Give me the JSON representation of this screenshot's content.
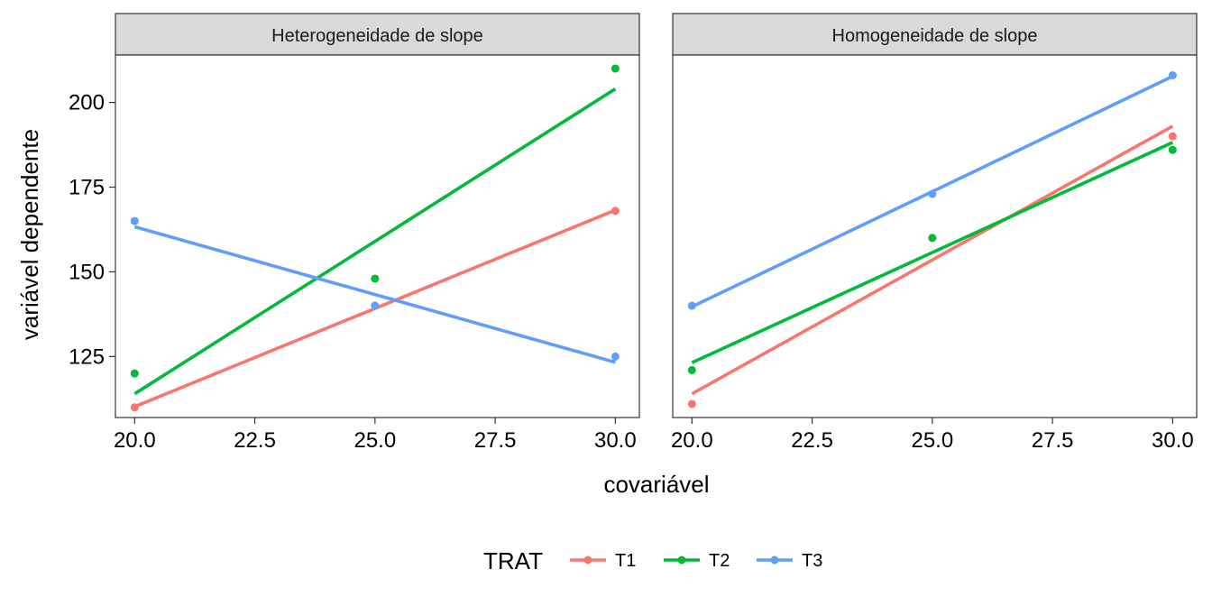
{
  "chart_data": {
    "type": "scatter",
    "ylabel": "variável dependente",
    "xlabel": "covariável",
    "xlim": [
      19.6,
      30.5
    ],
    "ylim": [
      107,
      214
    ],
    "x_ticks": [
      "20.0",
      "22.5",
      "25.0",
      "27.5",
      "30.0"
    ],
    "x_tick_values": [
      20,
      22.5,
      25,
      27.5,
      30
    ],
    "y_ticks": [
      "125",
      "150",
      "175",
      "200"
    ],
    "y_tick_values": [
      125,
      150,
      175,
      200
    ],
    "grid": false,
    "legend": {
      "title": "TRAT",
      "position": "bottom",
      "entries": [
        "T1",
        "T2",
        "T3"
      ]
    },
    "colors": {
      "T1": "#F8766D",
      "T2": "#00BA38",
      "T3": "#619CFF"
    },
    "panels": [
      {
        "strip": "Heterogeneidade de slope",
        "series": [
          {
            "name": "T1",
            "points": [
              [
                20,
                110
              ],
              [
                25,
                140
              ],
              [
                30,
                168
              ]
            ],
            "fit": [
              [
                20,
                110.2
              ],
              [
                30,
                168.2
              ]
            ]
          },
          {
            "name": "T2",
            "points": [
              [
                20,
                120
              ],
              [
                25,
                148
              ],
              [
                30,
                210
              ]
            ],
            "fit": [
              [
                20,
                114
              ],
              [
                30,
                204
              ]
            ]
          },
          {
            "name": "T3",
            "points": [
              [
                20,
                165
              ],
              [
                25,
                140
              ],
              [
                30,
                125
              ]
            ],
            "fit": [
              [
                20,
                163.3
              ],
              [
                30,
                123.3
              ]
            ]
          }
        ]
      },
      {
        "strip": "Homogeneidade de slope",
        "series": [
          {
            "name": "T1",
            "points": [
              [
                20,
                111
              ],
              [
                25,
                160
              ],
              [
                30,
                190
              ]
            ],
            "fit": [
              [
                20,
                114
              ],
              [
                30,
                193
              ]
            ]
          },
          {
            "name": "T2",
            "points": [
              [
                20,
                121
              ],
              [
                25,
                160
              ],
              [
                30,
                186
              ]
            ],
            "fit": [
              [
                20,
                123.2
              ],
              [
                30,
                188.2
              ]
            ]
          },
          {
            "name": "T3",
            "points": [
              [
                20,
                140
              ],
              [
                25,
                173
              ],
              [
                30,
                208
              ]
            ],
            "fit": [
              [
                20,
                139.7
              ],
              [
                30,
                207.7
              ]
            ]
          }
        ]
      }
    ]
  }
}
